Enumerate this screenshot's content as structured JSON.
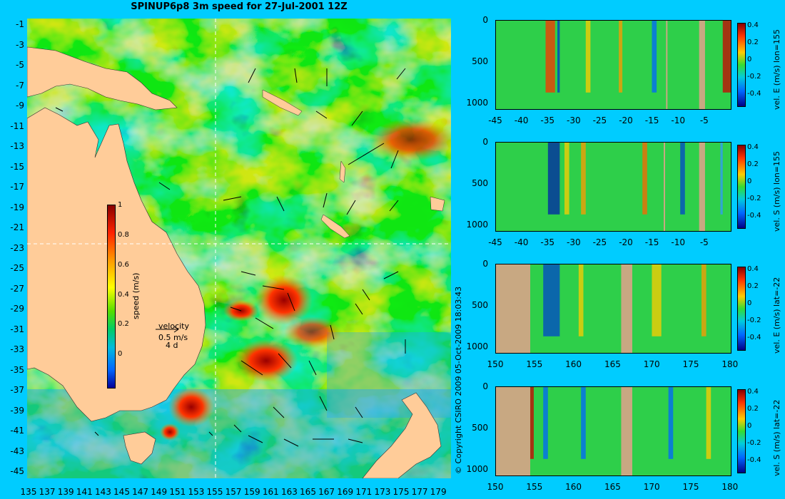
{
  "title": "SPINUP6p8 3m speed for 27-Jul-2001 12Z",
  "copyright": "© Copyright CSIRO 2009   05-Oct-2009 18:03:43",
  "map": {
    "lat_ticks": [
      "-1",
      "-3",
      "-5",
      "-7",
      "-9",
      "-11",
      "-13",
      "-15",
      "-17",
      "-19",
      "-21",
      "-23",
      "-25",
      "-27",
      "-29",
      "-31",
      "-33",
      "-35",
      "-37",
      "-39",
      "-41",
      "-43",
      "-45"
    ],
    "lon_ticks": [
      "135",
      "137",
      "139",
      "141",
      "143",
      "145",
      "147",
      "149",
      "151",
      "153",
      "155",
      "157",
      "159",
      "161",
      "163",
      "165",
      "167",
      "169",
      "171",
      "173",
      "175",
      "177",
      "179"
    ],
    "colorbar": {
      "ticks": [
        "1",
        "0.8",
        "0.6",
        "0.4",
        "0.2",
        "0"
      ],
      "label": "speed (m/s)"
    },
    "velocity_key": {
      "title": "velocity",
      "speed": "0.5 m/s",
      "duration": "4 d"
    },
    "section_lon": 155,
    "section_lat": -22,
    "colors": {
      "land": "#ffcc99",
      "background": "#00ccff"
    }
  },
  "sections": [
    {
      "label": "vel. E (m/s) lon=155",
      "x_ticks": [
        "-45",
        "-40",
        "-35",
        "-30",
        "-25",
        "-20",
        "-15",
        "-10",
        "-5"
      ],
      "y_ticks": [
        "0",
        "500",
        "1000"
      ],
      "cb_ticks": [
        "0.4",
        "0.2",
        "0",
        "-0.2",
        "-0.4"
      ]
    },
    {
      "label": "vel. S (m/s) lon=155",
      "x_ticks": [
        "-45",
        "-40",
        "-35",
        "-30",
        "-25",
        "-20",
        "-15",
        "-10",
        "-5"
      ],
      "y_ticks": [
        "0",
        "500",
        "1000"
      ],
      "cb_ticks": [
        "0.4",
        "0.2",
        "0",
        "-0.2",
        "-0.4"
      ]
    },
    {
      "label": "vel. E (m/s) lat=-22",
      "x_ticks": [
        "150",
        "155",
        "160",
        "165",
        "170",
        "175",
        "180"
      ],
      "y_ticks": [
        "0",
        "500",
        "1000"
      ],
      "cb_ticks": [
        "0.4",
        "0.2",
        "0",
        "-0.2",
        "-0.4"
      ]
    },
    {
      "label": "vel. S (m/s) lat=-22",
      "x_ticks": [
        "150",
        "155",
        "160",
        "165",
        "170",
        "175",
        "180"
      ],
      "y_ticks": [
        "0",
        "500",
        "1000"
      ],
      "cb_ticks": [
        "0.4",
        "0.2",
        "0",
        "-0.2",
        "-0.4"
      ]
    }
  ]
}
